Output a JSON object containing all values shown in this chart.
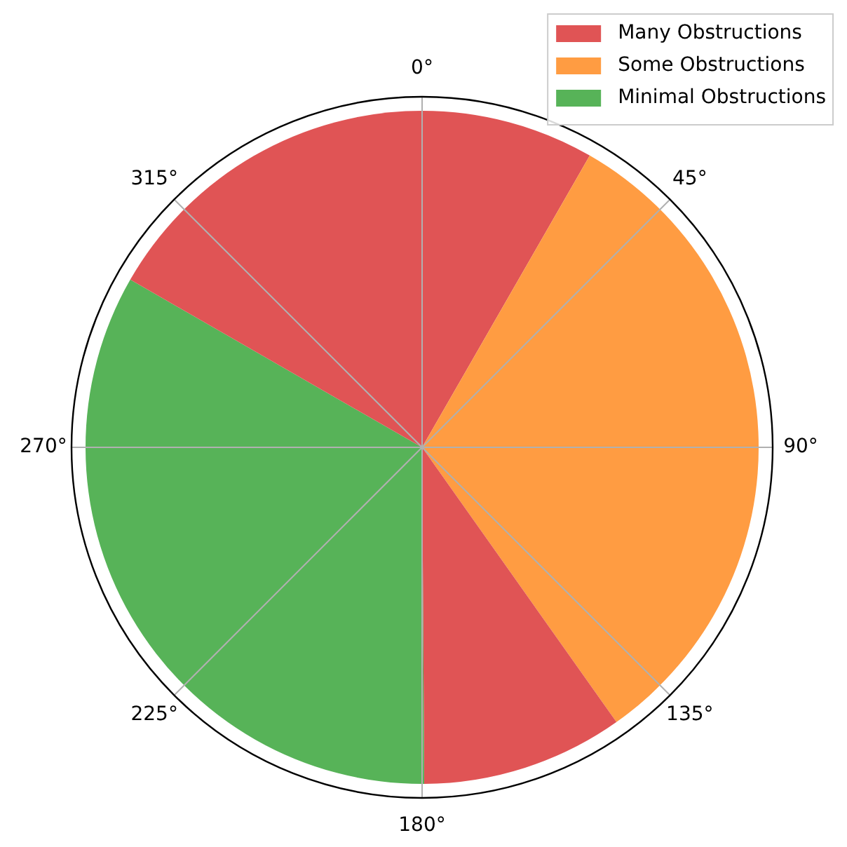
{
  "chart_data": {
    "type": "pie",
    "categories": [
      "Many Obstructions",
      "Some Obstructions",
      null,
      "Minimal Obstructions",
      null
    ],
    "values": [
      8.3,
      31.9,
      9.7,
      33.4,
      16.7
    ],
    "colors": [
      "#e05455",
      "#ff9c42",
      "#e05455",
      "#57b358",
      "#e05455"
    ],
    "annotations": [
      "0°",
      "45°",
      "90°",
      "135°",
      "180°",
      "225°",
      "270°",
      "315°"
    ],
    "grid": true,
    "legend": "top right"
  }
}
